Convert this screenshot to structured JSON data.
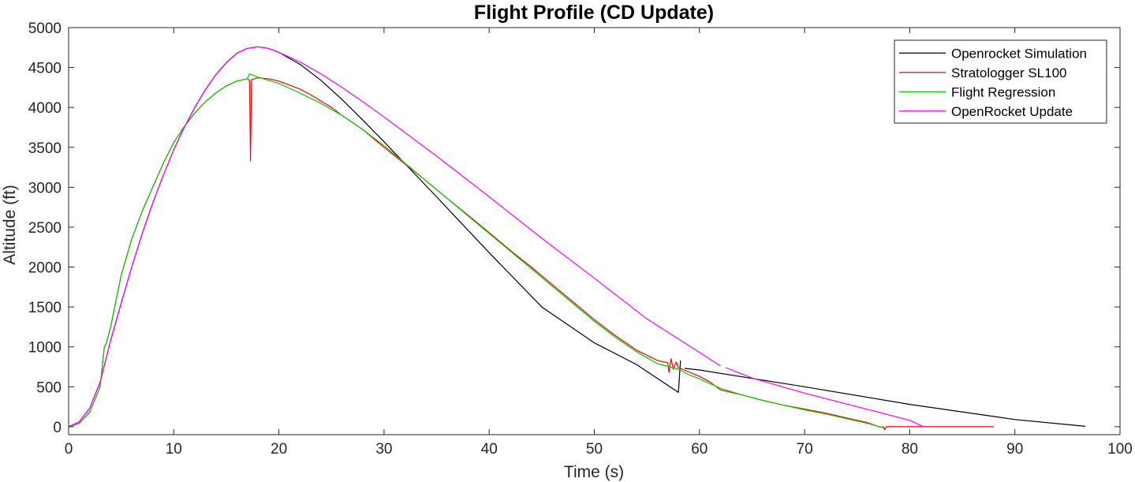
{
  "chart_data": {
    "type": "line",
    "title": "Flight Profile (CD Update)",
    "xlabel": "Time (s)",
    "ylabel": "Altitude (ft)",
    "xlim": [
      0,
      100
    ],
    "ylim": [
      -100,
      5000
    ],
    "xticks": [
      0,
      10,
      20,
      30,
      40,
      50,
      60,
      70,
      80,
      90,
      100
    ],
    "yticks": [
      0,
      500,
      1000,
      1500,
      2000,
      2500,
      3000,
      3500,
      4000,
      4500,
      5000
    ],
    "grid": false,
    "legend_position": "top-right",
    "series": [
      {
        "name": "Openrocket Simulation",
        "color": "#000000",
        "segments": [
          [
            [
              0,
              0
            ],
            [
              1,
              60
            ],
            [
              2,
              230
            ],
            [
              3,
              560
            ],
            [
              4,
              1080
            ],
            [
              5,
              1550
            ],
            [
              6,
              2000
            ],
            [
              7,
              2420
            ],
            [
              8,
              2800
            ],
            [
              9,
              3150
            ],
            [
              10,
              3470
            ],
            [
              11,
              3750
            ],
            [
              12,
              4000
            ],
            [
              13,
              4220
            ],
            [
              14,
              4410
            ],
            [
              15,
              4560
            ],
            [
              16,
              4680
            ],
            [
              17,
              4740
            ],
            [
              18,
              4760
            ],
            [
              19,
              4740
            ],
            [
              20,
              4690
            ],
            [
              22,
              4540
            ],
            [
              24,
              4340
            ],
            [
              26,
              4100
            ],
            [
              28,
              3840
            ],
            [
              30,
              3570
            ],
            [
              35,
              2880
            ],
            [
              40,
              2180
            ],
            [
              45,
              1500
            ],
            [
              50,
              1050
            ],
            [
              54,
              780
            ],
            [
              58,
              430
            ],
            [
              58.2,
              830
            ]
          ],
          [
            [
              58.6,
              730
            ],
            [
              60,
              710
            ],
            [
              70,
              500
            ],
            [
              80,
              280
            ],
            [
              90,
              90
            ],
            [
              96.7,
              5
            ]
          ]
        ]
      },
      {
        "name": "Stratologger SL100",
        "color": "#ff0000",
        "segments": [
          [
            [
              0,
              0
            ],
            [
              1,
              40
            ],
            [
              2,
              180
            ],
            [
              3,
              500
            ],
            [
              3.4,
              1000
            ],
            [
              3.6,
              1050
            ],
            [
              4,
              1250
            ],
            [
              5,
              1900
            ],
            [
              6,
              2350
            ],
            [
              7,
              2700
            ],
            [
              8,
              3000
            ],
            [
              9,
              3300
            ],
            [
              10,
              3560
            ],
            [
              11,
              3760
            ],
            [
              12,
              3930
            ],
            [
              13,
              4070
            ],
            [
              14,
              4180
            ],
            [
              15,
              4270
            ],
            [
              16,
              4330
            ],
            [
              17,
              4360
            ],
            [
              17.2,
              4340
            ],
            [
              17.3,
              3330
            ],
            [
              17.4,
              4350
            ],
            [
              18,
              4370
            ],
            [
              19,
              4360
            ],
            [
              20,
              4330
            ],
            [
              21,
              4280
            ],
            [
              22,
              4230
            ],
            [
              23,
              4160
            ],
            [
              24,
              4080
            ],
            [
              25,
              4000
            ],
            [
              26,
              3900
            ],
            [
              28,
              3720
            ],
            [
              30,
              3500
            ],
            [
              32,
              3290
            ],
            [
              34,
              3080
            ],
            [
              36,
              2860
            ],
            [
              38,
              2650
            ],
            [
              40,
              2430
            ],
            [
              42,
              2210
            ],
            [
              44,
              2000
            ],
            [
              46,
              1780
            ],
            [
              48,
              1560
            ],
            [
              50,
              1340
            ],
            [
              52,
              1140
            ],
            [
              54,
              960
            ],
            [
              56,
              830
            ],
            [
              57,
              800
            ],
            [
              57.1,
              680
            ],
            [
              57.3,
              850
            ],
            [
              57.5,
              720
            ],
            [
              57.8,
              810
            ],
            [
              58,
              740
            ],
            [
              60,
              630
            ],
            [
              61,
              560
            ],
            [
              62,
              460
            ],
            [
              64,
              400
            ],
            [
              66,
              330
            ],
            [
              68,
              270
            ],
            [
              70,
              220
            ],
            [
              72,
              170
            ],
            [
              74,
              110
            ],
            [
              76,
              50
            ],
            [
              77.3,
              -10
            ],
            [
              77.5,
              0
            ],
            [
              77.6,
              -40
            ],
            [
              77.8,
              0
            ],
            [
              80,
              0
            ],
            [
              85,
              0
            ],
            [
              88,
              0
            ]
          ]
        ]
      },
      {
        "name": "Flight Regression",
        "color": "#00cc00",
        "segments": [
          [
            [
              0,
              0
            ],
            [
              1,
              40
            ],
            [
              2,
              180
            ],
            [
              3,
              500
            ],
            [
              3.4,
              1000
            ],
            [
              3.6,
              1050
            ],
            [
              4,
              1250
            ],
            [
              5,
              1900
            ],
            [
              6,
              2350
            ],
            [
              7,
              2700
            ],
            [
              8,
              3000
            ],
            [
              9,
              3300
            ],
            [
              10,
              3560
            ],
            [
              11,
              3760
            ],
            [
              12,
              3930
            ],
            [
              13,
              4070
            ],
            [
              14,
              4180
            ],
            [
              15,
              4270
            ],
            [
              16,
              4330
            ],
            [
              17,
              4360
            ],
            [
              17.2,
              4420
            ],
            [
              18,
              4380
            ],
            [
              19,
              4340
            ],
            [
              20,
              4300
            ],
            [
              22,
              4180
            ],
            [
              24,
              4050
            ],
            [
              26,
              3900
            ],
            [
              28,
              3720
            ],
            [
              30,
              3520
            ],
            [
              32,
              3300
            ],
            [
              34,
              3080
            ],
            [
              36,
              2860
            ],
            [
              38,
              2640
            ],
            [
              40,
              2420
            ],
            [
              42,
              2200
            ],
            [
              44,
              1980
            ],
            [
              46,
              1760
            ],
            [
              48,
              1540
            ],
            [
              50,
              1320
            ],
            [
              52,
              1120
            ],
            [
              54,
              940
            ],
            [
              56,
              790
            ],
            [
              58,
              720
            ],
            [
              59,
              650
            ],
            [
              60,
              600
            ],
            [
              62,
              480
            ],
            [
              64,
              400
            ],
            [
              66,
              330
            ],
            [
              68,
              270
            ],
            [
              70,
              210
            ],
            [
              72,
              160
            ],
            [
              74,
              100
            ],
            [
              76,
              40
            ],
            [
              77.4,
              -10
            ]
          ]
        ]
      },
      {
        "name": "OpenRocket Update",
        "color": "#ff00ff",
        "segments": [
          [
            [
              0,
              0
            ],
            [
              1,
              60
            ],
            [
              2,
              230
            ],
            [
              3,
              560
            ],
            [
              4,
              1080
            ],
            [
              5,
              1550
            ],
            [
              6,
              2000
            ],
            [
              7,
              2420
            ],
            [
              8,
              2800
            ],
            [
              9,
              3150
            ],
            [
              10,
              3470
            ],
            [
              11,
              3750
            ],
            [
              12,
              4000
            ],
            [
              13,
              4220
            ],
            [
              14,
              4410
            ],
            [
              15,
              4560
            ],
            [
              16,
              4680
            ],
            [
              17,
              4740
            ],
            [
              18,
              4760
            ],
            [
              19,
              4740
            ],
            [
              20,
              4690
            ],
            [
              22,
              4570
            ],
            [
              24,
              4420
            ],
            [
              26,
              4250
            ],
            [
              28,
              4070
            ],
            [
              30,
              3880
            ],
            [
              35,
              3390
            ],
            [
              40,
              2880
            ],
            [
              45,
              2360
            ],
            [
              50,
              1860
            ],
            [
              55,
              1350
            ],
            [
              60,
              930
            ],
            [
              62,
              760
            ]
          ],
          [
            [
              62.5,
              740
            ],
            [
              65,
              610
            ],
            [
              70,
              420
            ],
            [
              75,
              250
            ],
            [
              80,
              80
            ],
            [
              81.3,
              0
            ]
          ]
        ]
      }
    ]
  }
}
